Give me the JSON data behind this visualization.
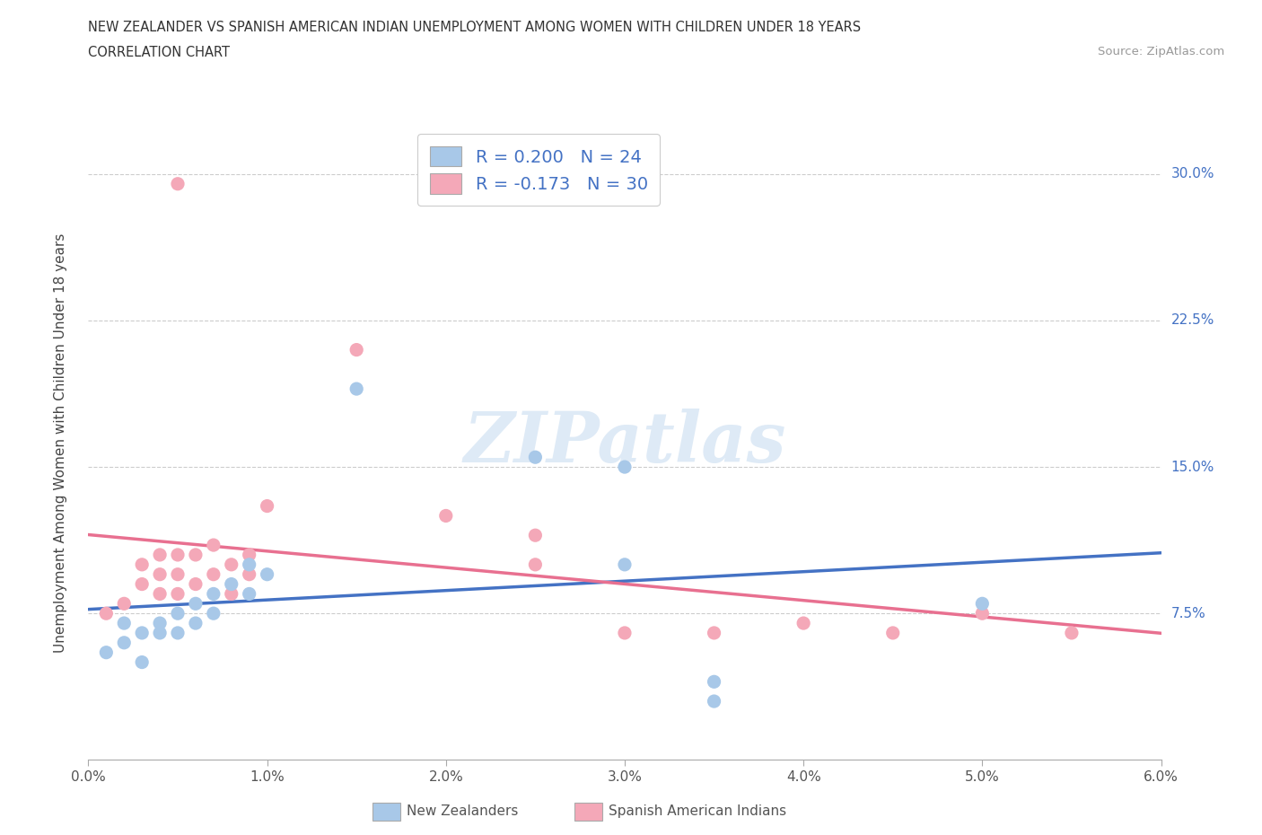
{
  "title_line1": "NEW ZEALANDER VS SPANISH AMERICAN INDIAN UNEMPLOYMENT AMONG WOMEN WITH CHILDREN UNDER 18 YEARS",
  "title_line2": "CORRELATION CHART",
  "source": "Source: ZipAtlas.com",
  "ylabel_label": "Unemployment Among Women with Children Under 18 years",
  "xlim": [
    0.0,
    0.06
  ],
  "ylim": [
    0.0,
    0.325
  ],
  "ytick_values": [
    0.075,
    0.15,
    0.225,
    0.3
  ],
  "xtick_values": [
    0.0,
    0.01,
    0.02,
    0.03,
    0.04,
    0.05,
    0.06
  ],
  "nz_R": 0.2,
  "nz_N": 24,
  "sai_R": -0.173,
  "sai_N": 30,
  "nz_color": "#A8C8E8",
  "sai_color": "#F4A8B8",
  "nz_line_color": "#4472C4",
  "sai_line_color": "#E87090",
  "watermark_color": "#C8DCF0",
  "legend_label_nz": "New Zealanders",
  "legend_label_sai": "Spanish American Indians",
  "nz_scatter_x": [
    0.001,
    0.002,
    0.002,
    0.003,
    0.003,
    0.004,
    0.004,
    0.005,
    0.005,
    0.006,
    0.006,
    0.007,
    0.007,
    0.008,
    0.009,
    0.009,
    0.01,
    0.015,
    0.025,
    0.03,
    0.03,
    0.035,
    0.035,
    0.05
  ],
  "nz_scatter_y": [
    0.055,
    0.06,
    0.07,
    0.05,
    0.065,
    0.065,
    0.07,
    0.065,
    0.075,
    0.07,
    0.08,
    0.075,
    0.085,
    0.09,
    0.085,
    0.1,
    0.095,
    0.19,
    0.155,
    0.15,
    0.1,
    0.03,
    0.04,
    0.08
  ],
  "sai_scatter_x": [
    0.001,
    0.002,
    0.003,
    0.003,
    0.004,
    0.004,
    0.004,
    0.005,
    0.005,
    0.005,
    0.005,
    0.006,
    0.006,
    0.007,
    0.007,
    0.008,
    0.008,
    0.009,
    0.009,
    0.01,
    0.015,
    0.02,
    0.025,
    0.025,
    0.03,
    0.035,
    0.04,
    0.045,
    0.05,
    0.055
  ],
  "sai_scatter_y": [
    0.075,
    0.08,
    0.09,
    0.1,
    0.085,
    0.095,
    0.105,
    0.085,
    0.095,
    0.105,
    0.295,
    0.09,
    0.105,
    0.095,
    0.11,
    0.085,
    0.1,
    0.095,
    0.105,
    0.13,
    0.21,
    0.125,
    0.1,
    0.115,
    0.065,
    0.065,
    0.07,
    0.065,
    0.075,
    0.065
  ]
}
